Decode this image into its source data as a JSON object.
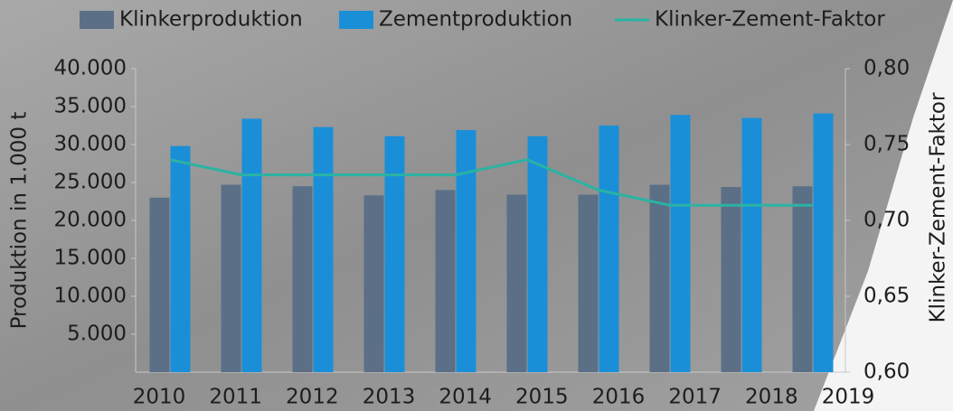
{
  "chart_data": {
    "type": "bar",
    "categories": [
      "2010",
      "2011",
      "2012",
      "2013",
      "2014",
      "2015",
      "2016",
      "2017",
      "2018",
      "2019"
    ],
    "series": [
      {
        "name": "Klinkerproduktion",
        "color": "#5b6f87",
        "values": [
          23000,
          24700,
          24500,
          23300,
          24000,
          23400,
          23400,
          24700,
          24400,
          24500
        ]
      },
      {
        "name": "Zementproduktion",
        "color": "#1a8fd8",
        "values": [
          29800,
          33400,
          32300,
          31100,
          31900,
          31100,
          32500,
          33900,
          33500,
          34100
        ]
      },
      {
        "name": "Klinker-Zement-Faktor",
        "color": "#2ab3a3",
        "type": "line",
        "axis": "y2",
        "values": [
          0.74,
          0.73,
          0.73,
          0.73,
          0.73,
          0.74,
          0.72,
          0.71,
          0.71,
          0.71
        ]
      }
    ],
    "ylabel": "Produktion in 1.000 t",
    "y2label": "Klinker-Zement-Faktor",
    "ylim": [
      0,
      40000
    ],
    "yticks": [
      {
        "value": 5000,
        "label": "5.000"
      },
      {
        "value": 10000,
        "label": "10.000"
      },
      {
        "value": 15000,
        "label": "15.000"
      },
      {
        "value": 20000,
        "label": "20.000"
      },
      {
        "value": 25000,
        "label": "25.000"
      },
      {
        "value": 30000,
        "label": "30.000"
      },
      {
        "value": 35000,
        "label": "35.000"
      },
      {
        "value": 40000,
        "label": "40.000"
      }
    ],
    "y2lim": [
      0.6,
      0.8
    ],
    "y2ticks": [
      {
        "value": 0.6,
        "label": "0,60"
      },
      {
        "value": 0.65,
        "label": "0,65"
      },
      {
        "value": 0.7,
        "label": "0,70"
      },
      {
        "value": 0.75,
        "label": "0,75"
      },
      {
        "value": 0.8,
        "label": "0,80"
      }
    ],
    "legend": "top"
  }
}
